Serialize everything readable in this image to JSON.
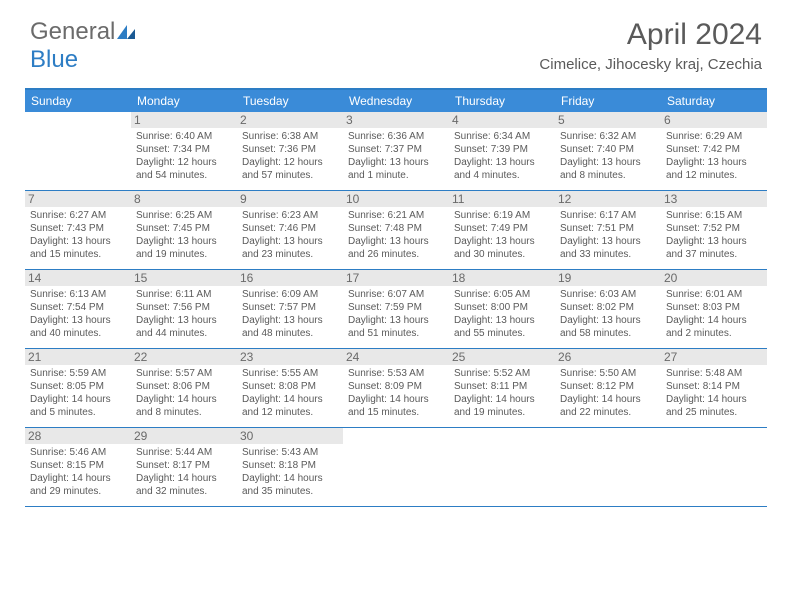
{
  "logo": {
    "part1": "General",
    "part2": "Blue"
  },
  "title": "April 2024",
  "location": "Cimelice, Jihocesky kraj, Czechia",
  "colors": {
    "header_bg": "#3a8bd8",
    "border": "#2d7dc4",
    "daynum_bg": "#e8e8e8",
    "text": "#5a5a5a"
  },
  "day_names": [
    "Sunday",
    "Monday",
    "Tuesday",
    "Wednesday",
    "Thursday",
    "Friday",
    "Saturday"
  ],
  "weeks": [
    [
      null,
      {
        "n": "1",
        "sr": "6:40 AM",
        "ss": "7:34 PM",
        "dl": "12 hours and 54 minutes."
      },
      {
        "n": "2",
        "sr": "6:38 AM",
        "ss": "7:36 PM",
        "dl": "12 hours and 57 minutes."
      },
      {
        "n": "3",
        "sr": "6:36 AM",
        "ss": "7:37 PM",
        "dl": "13 hours and 1 minute."
      },
      {
        "n": "4",
        "sr": "6:34 AM",
        "ss": "7:39 PM",
        "dl": "13 hours and 4 minutes."
      },
      {
        "n": "5",
        "sr": "6:32 AM",
        "ss": "7:40 PM",
        "dl": "13 hours and 8 minutes."
      },
      {
        "n": "6",
        "sr": "6:29 AM",
        "ss": "7:42 PM",
        "dl": "13 hours and 12 minutes."
      }
    ],
    [
      {
        "n": "7",
        "sr": "6:27 AM",
        "ss": "7:43 PM",
        "dl": "13 hours and 15 minutes."
      },
      {
        "n": "8",
        "sr": "6:25 AM",
        "ss": "7:45 PM",
        "dl": "13 hours and 19 minutes."
      },
      {
        "n": "9",
        "sr": "6:23 AM",
        "ss": "7:46 PM",
        "dl": "13 hours and 23 minutes."
      },
      {
        "n": "10",
        "sr": "6:21 AM",
        "ss": "7:48 PM",
        "dl": "13 hours and 26 minutes."
      },
      {
        "n": "11",
        "sr": "6:19 AM",
        "ss": "7:49 PM",
        "dl": "13 hours and 30 minutes."
      },
      {
        "n": "12",
        "sr": "6:17 AM",
        "ss": "7:51 PM",
        "dl": "13 hours and 33 minutes."
      },
      {
        "n": "13",
        "sr": "6:15 AM",
        "ss": "7:52 PM",
        "dl": "13 hours and 37 minutes."
      }
    ],
    [
      {
        "n": "14",
        "sr": "6:13 AM",
        "ss": "7:54 PM",
        "dl": "13 hours and 40 minutes."
      },
      {
        "n": "15",
        "sr": "6:11 AM",
        "ss": "7:56 PM",
        "dl": "13 hours and 44 minutes."
      },
      {
        "n": "16",
        "sr": "6:09 AM",
        "ss": "7:57 PM",
        "dl": "13 hours and 48 minutes."
      },
      {
        "n": "17",
        "sr": "6:07 AM",
        "ss": "7:59 PM",
        "dl": "13 hours and 51 minutes."
      },
      {
        "n": "18",
        "sr": "6:05 AM",
        "ss": "8:00 PM",
        "dl": "13 hours and 55 minutes."
      },
      {
        "n": "19",
        "sr": "6:03 AM",
        "ss": "8:02 PM",
        "dl": "13 hours and 58 minutes."
      },
      {
        "n": "20",
        "sr": "6:01 AM",
        "ss": "8:03 PM",
        "dl": "14 hours and 2 minutes."
      }
    ],
    [
      {
        "n": "21",
        "sr": "5:59 AM",
        "ss": "8:05 PM",
        "dl": "14 hours and 5 minutes."
      },
      {
        "n": "22",
        "sr": "5:57 AM",
        "ss": "8:06 PM",
        "dl": "14 hours and 8 minutes."
      },
      {
        "n": "23",
        "sr": "5:55 AM",
        "ss": "8:08 PM",
        "dl": "14 hours and 12 minutes."
      },
      {
        "n": "24",
        "sr": "5:53 AM",
        "ss": "8:09 PM",
        "dl": "14 hours and 15 minutes."
      },
      {
        "n": "25",
        "sr": "5:52 AM",
        "ss": "8:11 PM",
        "dl": "14 hours and 19 minutes."
      },
      {
        "n": "26",
        "sr": "5:50 AM",
        "ss": "8:12 PM",
        "dl": "14 hours and 22 minutes."
      },
      {
        "n": "27",
        "sr": "5:48 AM",
        "ss": "8:14 PM",
        "dl": "14 hours and 25 minutes."
      }
    ],
    [
      {
        "n": "28",
        "sr": "5:46 AM",
        "ss": "8:15 PM",
        "dl": "14 hours and 29 minutes."
      },
      {
        "n": "29",
        "sr": "5:44 AM",
        "ss": "8:17 PM",
        "dl": "14 hours and 32 minutes."
      },
      {
        "n": "30",
        "sr": "5:43 AM",
        "ss": "8:18 PM",
        "dl": "14 hours and 35 minutes."
      },
      null,
      null,
      null,
      null
    ]
  ],
  "labels": {
    "sunrise": "Sunrise:",
    "sunset": "Sunset:",
    "daylight": "Daylight:"
  }
}
